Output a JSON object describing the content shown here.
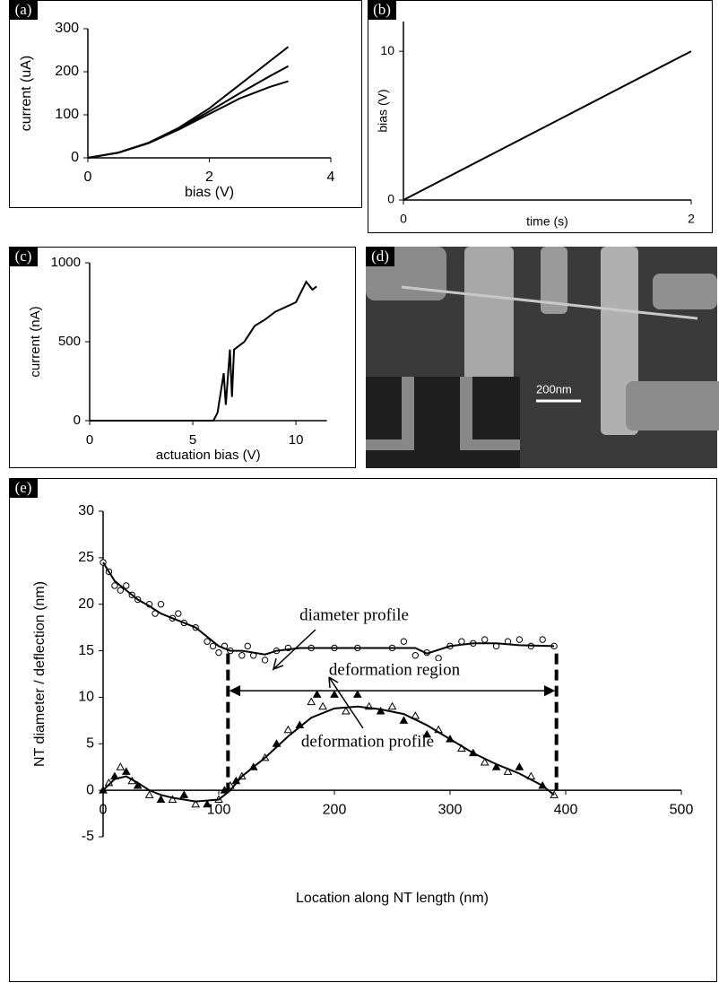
{
  "chart_data": [
    {
      "type": "line",
      "label": "(a)",
      "x_label": "bias (V)",
      "y_label": "current (uA)",
      "xlim": [
        0,
        4
      ],
      "ylim": [
        0,
        300
      ],
      "xticks": [
        0,
        2,
        4
      ],
      "yticks": [
        0,
        100,
        200,
        300
      ],
      "x": [
        0,
        0.5,
        1,
        1.5,
        2,
        2.5,
        3,
        3.3
      ],
      "series": [
        {
          "color": "#000000",
          "values": [
            0,
            12,
            35,
            70,
            115,
            170,
            225,
            258
          ]
        },
        {
          "color": "#000000",
          "values": [
            0,
            12,
            35,
            68,
            108,
            150,
            190,
            213
          ]
        },
        {
          "color": "#000000",
          "values": [
            0,
            12,
            34,
            66,
            102,
            138,
            165,
            178
          ]
        }
      ]
    },
    {
      "type": "line",
      "label": "(b)",
      "x_label": "time (s)",
      "y_label": "bias (V)",
      "xlim": [
        0,
        2
      ],
      "ylim": [
        0,
        12
      ],
      "xticks": [
        0,
        2
      ],
      "yticks": [
        0,
        10
      ],
      "x": [
        0,
        2
      ],
      "series": [
        {
          "color": "#000000",
          "values": [
            0,
            10
          ]
        }
      ]
    },
    {
      "type": "line",
      "label": "(c)",
      "x_label": "actuation bias (V)",
      "y_label": "current (nA)",
      "xlim": [
        0,
        11.5
      ],
      "ylim": [
        0,
        1000
      ],
      "xticks": [
        0,
        5,
        10
      ],
      "yticks": [
        0,
        500,
        1000
      ],
      "x": [
        0,
        1,
        2,
        3,
        4,
        5,
        6,
        6.2,
        6.5,
        6.6,
        6.8,
        6.9,
        7,
        7.5,
        8,
        8.5,
        9,
        9.5,
        10,
        10.5,
        10.8,
        11
      ],
      "series": [
        {
          "color": "#000000",
          "values": [
            0,
            0,
            0,
            0,
            0,
            0,
            0,
            50,
            300,
            100,
            450,
            150,
            450,
            500,
            600,
            640,
            690,
            720,
            750,
            880,
            830,
            850
          ]
        }
      ]
    },
    {
      "type": "image",
      "label": "(d)",
      "scale_bar": "200nm"
    },
    {
      "type": "scatter",
      "label": "(e)",
      "x_label": "Location along NT length (nm)",
      "y_label": "NT diameter / deflection (nm)",
      "xlim": [
        0,
        500
      ],
      "ylim": [
        -5,
        30
      ],
      "xticks": [
        0,
        100,
        200,
        300,
        400,
        500
      ],
      "yticks": [
        -5,
        0,
        5,
        10,
        15,
        20,
        25,
        30
      ],
      "annotations": [
        "diameter profile",
        "deformation region",
        "deformation profile"
      ],
      "region": [
        108,
        392
      ],
      "series": [
        {
          "marker": "circle",
          "color": "#000000",
          "x": [
            0,
            5,
            10,
            15,
            20,
            25,
            30,
            40,
            45,
            50,
            60,
            65,
            70,
            80,
            90,
            95,
            100,
            105,
            110,
            120,
            125,
            130,
            140,
            150,
            160,
            180,
            200,
            220,
            250,
            260,
            270,
            280,
            290,
            300,
            310,
            320,
            330,
            340,
            350,
            360,
            370,
            380,
            390
          ],
          "values": [
            24.5,
            23.5,
            22,
            21.5,
            22,
            21,
            20.5,
            20,
            19,
            20,
            18.5,
            19,
            18,
            17.5,
            16,
            15.5,
            14.8,
            15.5,
            15,
            14.5,
            15.5,
            14.5,
            14,
            15,
            15.3,
            15.3,
            15.3,
            15.3,
            15.3,
            16,
            14.5,
            14.8,
            14.2,
            15.5,
            16,
            15.8,
            16.2,
            15.5,
            16,
            16.2,
            15.5,
            16.2,
            15.5
          ]
        },
        {
          "marker": "triangle",
          "color": "#000000",
          "x": [
            0,
            5,
            10,
            15,
            20,
            25,
            30,
            40,
            50,
            60,
            70,
            80,
            90,
            100,
            105,
            110,
            115,
            120,
            130,
            140,
            150,
            160,
            170,
            180,
            185,
            190,
            200,
            210,
            220,
            230,
            240,
            250,
            260,
            270,
            280,
            290,
            300,
            310,
            320,
            330,
            340,
            350,
            360,
            370,
            380,
            390
          ],
          "values": [
            0,
            0.8,
            1.5,
            2.5,
            2,
            1,
            0.5,
            -0.5,
            -1,
            -1,
            -0.5,
            -1.5,
            -1.5,
            -1,
            0,
            0.5,
            1,
            1.5,
            2.5,
            3.5,
            5,
            6.5,
            7,
            9.5,
            10.3,
            9,
            10.3,
            8.5,
            10.3,
            9,
            8.5,
            9,
            7.5,
            8,
            6,
            6.5,
            5.5,
            4.5,
            4,
            3,
            2.5,
            2,
            2.5,
            1.5,
            0.5,
            -0.5
          ]
        },
        {
          "marker": "none",
          "color": "#000000",
          "x": [
            0,
            10,
            20,
            30,
            40,
            50,
            60,
            70,
            80,
            90,
            100,
            110,
            120,
            130,
            140,
            150,
            170,
            200,
            250,
            270,
            280,
            300,
            320,
            340,
            360,
            390
          ],
          "values": [
            24.5,
            22.5,
            21.5,
            20.5,
            19.8,
            19,
            18.5,
            18,
            17.5,
            16.5,
            15.5,
            15,
            15,
            14.8,
            14.6,
            15,
            15.3,
            15.3,
            15.3,
            15.3,
            14.7,
            15.5,
            15.8,
            15.8,
            15.6,
            15.5
          ]
        },
        {
          "marker": "none",
          "color": "#000000",
          "x": [
            0,
            10,
            20,
            30,
            40,
            50,
            60,
            80,
            100,
            110,
            120,
            140,
            160,
            180,
            200,
            220,
            240,
            260,
            280,
            300,
            320,
            340,
            360,
            380,
            390
          ],
          "values": [
            0,
            1.2,
            1.5,
            0.8,
            0,
            -0.5,
            -0.8,
            -1.2,
            -1,
            0,
            1.5,
            3.5,
            5.8,
            7.8,
            8.8,
            9,
            8.7,
            8.2,
            7,
            5.5,
            4,
            2.8,
            1.8,
            0.5,
            -0.5
          ]
        }
      ]
    }
  ]
}
